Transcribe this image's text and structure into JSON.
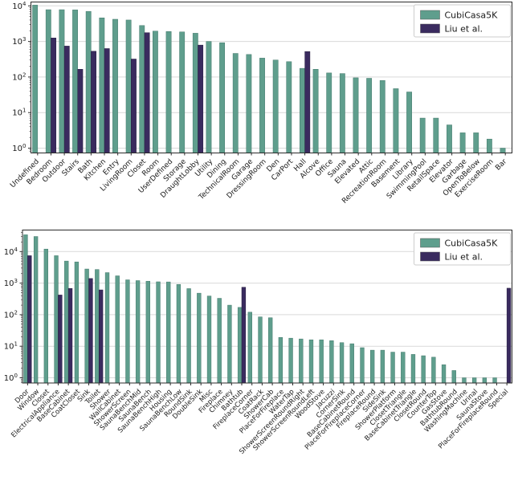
{
  "figure": {
    "background": "#ffffff",
    "grid_color": "#d9d9d9",
    "spine_color": "#2b2b2b",
    "legend": {
      "entries": [
        {
          "label": "CubiCasa5K",
          "color": "#5f9e8d"
        },
        {
          "label": "Liu et al.",
          "color": "#3a2b5f"
        }
      ],
      "position": "upper right"
    }
  },
  "chart_data": [
    {
      "type": "bar",
      "title": "",
      "xlabel": "",
      "ylabel": "",
      "yscale": "log",
      "ylim": [
        0.75,
        12600
      ],
      "ytick_labels": [
        "10^0",
        "10^1",
        "10^2",
        "10^3",
        "10^4"
      ],
      "grid": "horizontal",
      "legend_position": "upper right",
      "categories": [
        "Undefined",
        "Bedroom",
        "Outdoor",
        "Stairs",
        "Bath",
        "Kitchen",
        "Entry",
        "LivingRoom",
        "Closet",
        "Room",
        "UserDefined",
        "Storage",
        "DraughtLobby",
        "Utility",
        "Dining",
        "TechnicalRoom",
        "Garage",
        "DressingRoom",
        "Den",
        "CarPort",
        "Hall",
        "Alcove",
        "Office",
        "Sauna",
        "Elevated",
        "Attic",
        "RecreationRoom",
        "Basement",
        "Library",
        "SwimmingPool",
        "RetailSpace",
        "Elevator",
        "Garbage",
        "OpenToBelow",
        "ExerciseRoom",
        "Bar"
      ],
      "series": [
        {
          "name": "CubiCasa5K",
          "color": "#5f9e8d",
          "edge": "#44796c",
          "values": [
            10500,
            7800,
            7800,
            7700,
            7000,
            4600,
            4200,
            4000,
            2800,
            1950,
            1900,
            1850,
            1700,
            1000,
            920,
            460,
            430,
            340,
            300,
            270,
            175,
            165,
            130,
            125,
            95,
            92,
            80,
            47,
            38,
            7,
            7,
            4.5,
            2.7,
            2.7,
            1.8,
            1
          ]
        },
        {
          "name": "Liu et al.",
          "color": "#3a2b5f",
          "edge": "#241c3e",
          "values": [
            null,
            1250,
            740,
            165,
            530,
            630,
            null,
            320,
            1760,
            null,
            null,
            null,
            790,
            null,
            null,
            null,
            null,
            null,
            null,
            null,
            520,
            null,
            null,
            null,
            null,
            null,
            null,
            null,
            null,
            null,
            null,
            null,
            null,
            null,
            null,
            null
          ]
        }
      ]
    },
    {
      "type": "bar",
      "title": "",
      "xlabel": "",
      "ylabel": "",
      "yscale": "log",
      "ylim": [
        0.7,
        44000
      ],
      "ytick_labels": [
        "10^0",
        "10^1",
        "10^2",
        "10^3",
        "10^4"
      ],
      "grid": "horizontal",
      "legend_position": "upper right",
      "categories": [
        "Door",
        "Window",
        "Closet",
        "ElectricalAppliance",
        "BaseCabinet",
        "CoatCloset",
        "Sink",
        "Toilet",
        "Shower",
        "WallCabinet",
        "ShowerScreen",
        "SaunaBenchMid",
        "SaunaBench",
        "SaunaBenchHigh",
        "Housing",
        "SaunaBenchLow",
        "RoundSink",
        "DoubleSink",
        "Misc",
        "Fireplace",
        "Chimney",
        "Bathtub",
        "FireplaceCorner",
        "CoatRack",
        "ShowerCab",
        "PlaceForFireplace",
        "WaterTap",
        "ShowerScreenRoundRight",
        "ShowerScreenRoundLeft",
        "WoodStove",
        "Jacuzzi",
        "CornerSink",
        "BaseCabinetRound",
        "PlaceForFireplaceCorner",
        "FireplaceRound",
        "SideSink",
        "ShowerPlatform",
        "ClosetTriangle",
        "BaseCabinetTriangle",
        "ClosetRound",
        "CounterTop",
        "GasStove",
        "BathtubRound",
        "WashingMachine",
        "Urinal",
        "SaunaStove",
        "PlaceForFireplaceRound",
        "Special"
      ],
      "series": [
        {
          "name": "CubiCasa5K",
          "color": "#5f9e8d",
          "edge": "#44796c",
          "values": [
            34000,
            30000,
            12000,
            7400,
            5000,
            4700,
            2800,
            2700,
            2150,
            1700,
            1270,
            1200,
            1150,
            1100,
            1090,
            910,
            670,
            480,
            390,
            330,
            200,
            170,
            120,
            85,
            80,
            19,
            18,
            17,
            16,
            16,
            15,
            13,
            12,
            9,
            7.5,
            7.5,
            6.5,
            6.5,
            5.5,
            5,
            4.5,
            2.6,
            1.7,
            1,
            1,
            1,
            1,
            null
          ]
        },
        {
          "name": "Liu et al.",
          "color": "#3a2b5f",
          "edge": "#241c3e",
          "values": [
            7400,
            null,
            null,
            420,
            680,
            null,
            1400,
            610,
            null,
            null,
            null,
            null,
            null,
            null,
            null,
            null,
            null,
            null,
            null,
            null,
            null,
            740,
            null,
            null,
            null,
            null,
            null,
            null,
            null,
            null,
            null,
            null,
            null,
            null,
            null,
            null,
            null,
            null,
            null,
            null,
            null,
            null,
            null,
            null,
            null,
            null,
            null,
            690
          ]
        }
      ]
    }
  ]
}
